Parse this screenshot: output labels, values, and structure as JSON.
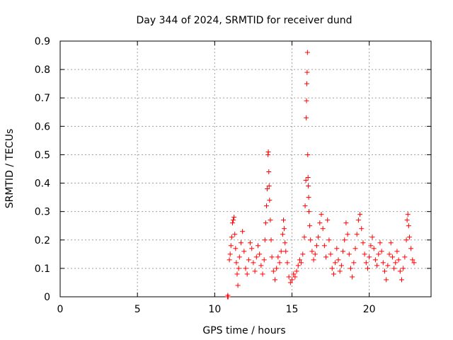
{
  "chart_data": {
    "type": "scatter",
    "title": "Day 344 of 2024, SRMTID for receiver dund",
    "xlabel": "GPS time / hours",
    "ylabel": "SRMTID / TECUs",
    "xlim": [
      0,
      24
    ],
    "ylim": [
      0,
      0.9
    ],
    "xticks": [
      0,
      5,
      10,
      15,
      20
    ],
    "yticks": [
      0,
      0.1,
      0.2,
      0.3,
      0.4,
      0.5,
      0.6,
      0.7,
      0.8,
      0.9
    ],
    "ytick_labels": [
      "0",
      "0.1",
      "0.2",
      "0.3",
      "0.4",
      "0.5",
      "0.6",
      "0.7",
      "0.8",
      "0.9"
    ],
    "grid": true,
    "marker": "+",
    "color": "#ff0000",
    "series": [
      {
        "name": "SRMTID",
        "points": [
          [
            10.83,
            0.0
          ],
          [
            10.85,
            0.005
          ],
          [
            10.87,
            0.0
          ],
          [
            10.95,
            0.13
          ],
          [
            11.0,
            0.15
          ],
          [
            11.05,
            0.18
          ],
          [
            11.1,
            0.21
          ],
          [
            11.15,
            0.26
          ],
          [
            11.2,
            0.27
          ],
          [
            11.25,
            0.28
          ],
          [
            11.3,
            0.22
          ],
          [
            11.35,
            0.17
          ],
          [
            11.4,
            0.12
          ],
          [
            11.45,
            0.08
          ],
          [
            11.5,
            0.04
          ],
          [
            11.55,
            0.1
          ],
          [
            11.6,
            0.14
          ],
          [
            11.7,
            0.19
          ],
          [
            11.8,
            0.23
          ],
          [
            11.9,
            0.16
          ],
          [
            12.0,
            0.1
          ],
          [
            12.1,
            0.08
          ],
          [
            12.2,
            0.13
          ],
          [
            12.3,
            0.19
          ],
          [
            12.4,
            0.17
          ],
          [
            12.5,
            0.12
          ],
          [
            12.6,
            0.09
          ],
          [
            12.7,
            0.14
          ],
          [
            12.8,
            0.18
          ],
          [
            12.9,
            0.15
          ],
          [
            13.0,
            0.11
          ],
          [
            13.1,
            0.08
          ],
          [
            13.2,
            0.13
          ],
          [
            13.25,
            0.2
          ],
          [
            13.3,
            0.26
          ],
          [
            13.35,
            0.32
          ],
          [
            13.4,
            0.38
          ],
          [
            13.45,
            0.5
          ],
          [
            13.47,
            0.51
          ],
          [
            13.5,
            0.44
          ],
          [
            13.52,
            0.39
          ],
          [
            13.55,
            0.34
          ],
          [
            13.6,
            0.27
          ],
          [
            13.65,
            0.2
          ],
          [
            13.7,
            0.14
          ],
          [
            13.8,
            0.09
          ],
          [
            13.9,
            0.06
          ],
          [
            14.0,
            0.1
          ],
          [
            14.1,
            0.14
          ],
          [
            14.2,
            0.12
          ],
          [
            14.3,
            0.16
          ],
          [
            14.4,
            0.22
          ],
          [
            14.45,
            0.27
          ],
          [
            14.5,
            0.24
          ],
          [
            14.55,
            0.19
          ],
          [
            14.6,
            0.16
          ],
          [
            14.7,
            0.12
          ],
          [
            14.8,
            0.07
          ],
          [
            14.9,
            0.05
          ],
          [
            15.0,
            0.06
          ],
          [
            15.1,
            0.08
          ],
          [
            15.2,
            0.07
          ],
          [
            15.3,
            0.09
          ],
          [
            15.4,
            0.11
          ],
          [
            15.5,
            0.13
          ],
          [
            15.6,
            0.12
          ],
          [
            15.7,
            0.15
          ],
          [
            15.8,
            0.21
          ],
          [
            15.85,
            0.32
          ],
          [
            15.9,
            0.41
          ],
          [
            15.92,
            0.63
          ],
          [
            15.94,
            0.69
          ],
          [
            15.96,
            0.75
          ],
          [
            15.98,
            0.79
          ],
          [
            16.0,
            0.86
          ],
          [
            16.02,
            0.5
          ],
          [
            16.04,
            0.42
          ],
          [
            16.06,
            0.39
          ],
          [
            16.08,
            0.35
          ],
          [
            16.1,
            0.3
          ],
          [
            16.15,
            0.25
          ],
          [
            16.2,
            0.2
          ],
          [
            16.3,
            0.16
          ],
          [
            16.4,
            0.13
          ],
          [
            16.5,
            0.15
          ],
          [
            16.6,
            0.18
          ],
          [
            16.7,
            0.21
          ],
          [
            16.8,
            0.26
          ],
          [
            16.9,
            0.29
          ],
          [
            17.0,
            0.24
          ],
          [
            17.1,
            0.18
          ],
          [
            17.2,
            0.14
          ],
          [
            17.3,
            0.27
          ],
          [
            17.4,
            0.2
          ],
          [
            17.5,
            0.15
          ],
          [
            17.6,
            0.1
          ],
          [
            17.7,
            0.08
          ],
          [
            17.8,
            0.12
          ],
          [
            17.9,
            0.17
          ],
          [
            18.0,
            0.13
          ],
          [
            18.1,
            0.09
          ],
          [
            18.2,
            0.11
          ],
          [
            18.3,
            0.16
          ],
          [
            18.4,
            0.2
          ],
          [
            18.5,
            0.26
          ],
          [
            18.6,
            0.22
          ],
          [
            18.7,
            0.15
          ],
          [
            18.8,
            0.1
          ],
          [
            18.9,
            0.07
          ],
          [
            19.0,
            0.12
          ],
          [
            19.1,
            0.17
          ],
          [
            19.2,
            0.22
          ],
          [
            19.3,
            0.27
          ],
          [
            19.4,
            0.29
          ],
          [
            19.5,
            0.24
          ],
          [
            19.6,
            0.19
          ],
          [
            19.7,
            0.15
          ],
          [
            19.8,
            0.12
          ],
          [
            19.9,
            0.1
          ],
          [
            20.0,
            0.14
          ],
          [
            20.1,
            0.18
          ],
          [
            20.2,
            0.21
          ],
          [
            20.3,
            0.17
          ],
          [
            20.4,
            0.13
          ],
          [
            20.5,
            0.11
          ],
          [
            20.6,
            0.15
          ],
          [
            20.7,
            0.19
          ],
          [
            20.8,
            0.16
          ],
          [
            20.9,
            0.12
          ],
          [
            21.0,
            0.09
          ],
          [
            21.1,
            0.06
          ],
          [
            21.2,
            0.11
          ],
          [
            21.3,
            0.15
          ],
          [
            21.4,
            0.19
          ],
          [
            21.5,
            0.14
          ],
          [
            21.6,
            0.1
          ],
          [
            21.7,
            0.12
          ],
          [
            21.8,
            0.16
          ],
          [
            21.9,
            0.13
          ],
          [
            22.0,
            0.09
          ],
          [
            22.1,
            0.06
          ],
          [
            22.2,
            0.1
          ],
          [
            22.3,
            0.14
          ],
          [
            22.4,
            0.2
          ],
          [
            22.45,
            0.27
          ],
          [
            22.5,
            0.29
          ],
          [
            22.55,
            0.25
          ],
          [
            22.6,
            0.21
          ],
          [
            22.7,
            0.17
          ],
          [
            22.8,
            0.13
          ],
          [
            22.9,
            0.12
          ]
        ]
      }
    ]
  }
}
